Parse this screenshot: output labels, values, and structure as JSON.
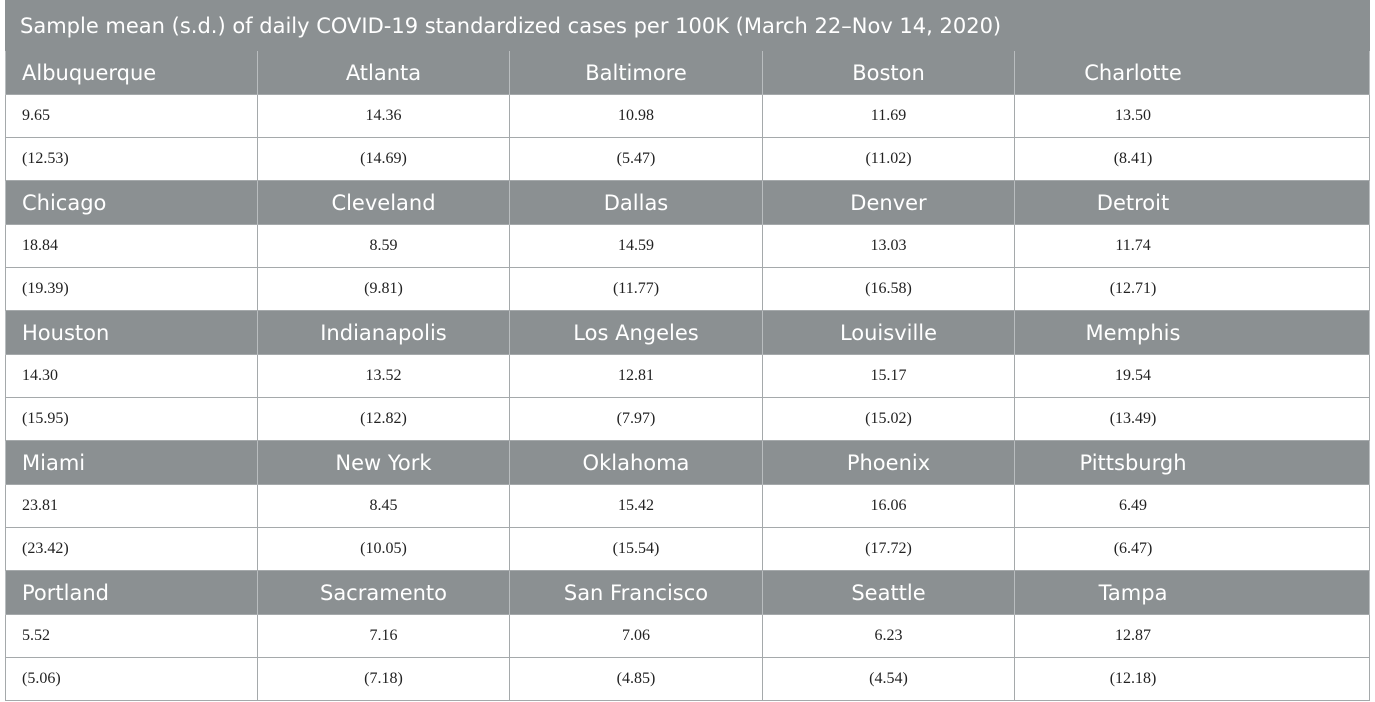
{
  "table": {
    "title": "Sample mean (s.d.) of daily COVID-19 standardized cases per 100K (March 22–Nov 14, 2020)",
    "groups": [
      {
        "cities": [
          "Albuquerque",
          "Atlanta",
          "Baltimore",
          "Boston",
          "Charlotte"
        ],
        "means": [
          "9.65",
          "14.36",
          "10.98",
          "11.69",
          "13.50"
        ],
        "sds": [
          "(12.53)",
          "(14.69)",
          "(5.47)",
          "(11.02)",
          "(8.41)"
        ]
      },
      {
        "cities": [
          "Chicago",
          "Cleveland",
          "Dallas",
          "Denver",
          "Detroit"
        ],
        "means": [
          "18.84",
          "8.59",
          "14.59",
          "13.03",
          "11.74"
        ],
        "sds": [
          "(19.39)",
          "(9.81)",
          "(11.77)",
          "(16.58)",
          "(12.71)"
        ]
      },
      {
        "cities": [
          "Houston",
          "Indianapolis",
          "Los Angeles",
          "Louisville",
          "Memphis"
        ],
        "means": [
          "14.30",
          "13.52",
          "12.81",
          "15.17",
          "19.54"
        ],
        "sds": [
          "(15.95)",
          "(12.82)",
          "(7.97)",
          "(15.02)",
          "(13.49)"
        ]
      },
      {
        "cities": [
          "Miami",
          "New York",
          "Oklahoma",
          "Phoenix",
          "Pittsburgh"
        ],
        "means": [
          "23.81",
          "8.45",
          "15.42",
          "16.06",
          "6.49"
        ],
        "sds": [
          "(23.42)",
          "(10.05)",
          "(15.54)",
          "(17.72)",
          "(6.47)"
        ]
      },
      {
        "cities": [
          "Portland",
          "Sacramento",
          "San Francisco",
          "Seattle",
          "Tampa"
        ],
        "means": [
          "5.52",
          "7.16",
          "7.06",
          "6.23",
          "12.87"
        ],
        "sds": [
          "(5.06)",
          "(7.18)",
          "(4.85)",
          "(4.54)",
          "(12.18)"
        ]
      }
    ]
  }
}
